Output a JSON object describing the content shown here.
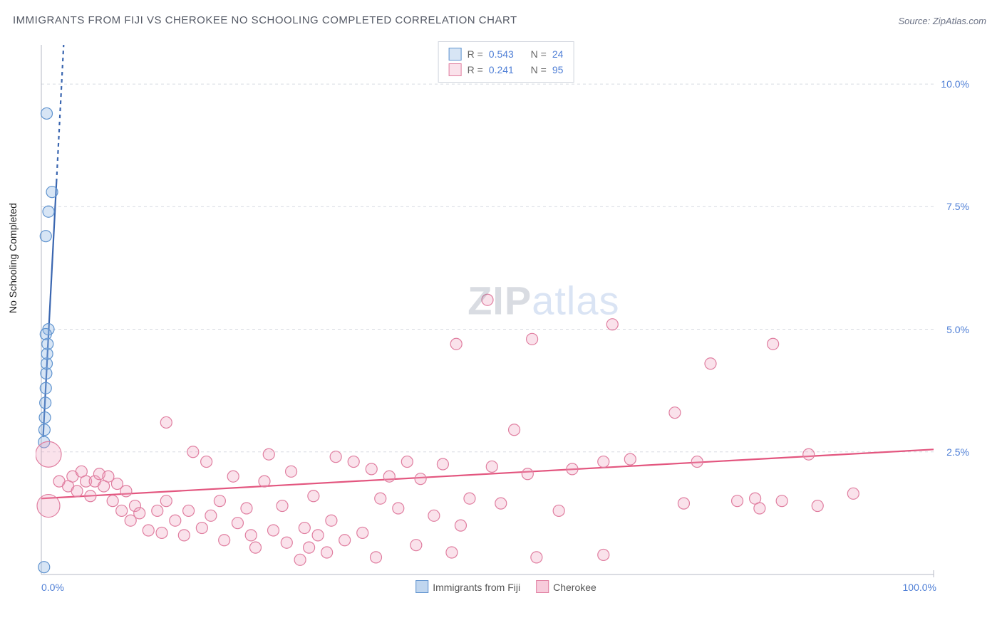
{
  "title": "IMMIGRANTS FROM FIJI VS CHEROKEE NO SCHOOLING COMPLETED CORRELATION CHART",
  "source_prefix": "Source: ",
  "source_name": "ZipAtlas.com",
  "ylabel": "No Schooling Completed",
  "watermark_bold": "ZIP",
  "watermark_light": "atlas",
  "chart": {
    "type": "scatter",
    "background_color": "#ffffff",
    "grid_color": "#d8dbe2",
    "grid_dash": "4,4",
    "axis_color": "#b6bac5",
    "xlim": [
      0,
      100
    ],
    "ylim": [
      0,
      10.8
    ],
    "x_ticks": [
      {
        "v": 0,
        "label": "0.0%"
      },
      {
        "v": 100,
        "label": "100.0%"
      }
    ],
    "y_ticks": [
      {
        "v": 2.5,
        "label": "2.5%"
      },
      {
        "v": 5.0,
        "label": "5.0%"
      },
      {
        "v": 7.5,
        "label": "7.5%"
      },
      {
        "v": 10.0,
        "label": "10.0%"
      }
    ],
    "tick_color": "#4f7fd6",
    "tick_fontsize": 14,
    "marker_radius": 8,
    "marker_stroke_width": 1.2,
    "trend_width": 2.2,
    "series": [
      {
        "id": "fiji",
        "name": "Immigrants from Fiji",
        "color": "#6fa2db",
        "fill": "rgba(140,180,225,0.35)",
        "stroke": "#5f93cf",
        "R": "0.543",
        "N": "24",
        "trend": {
          "x1": 0.2,
          "y1": 2.8,
          "x2": 2.5,
          "y2": 10.8,
          "color": "#3a66b0",
          "dash_after_y": 8.0
        },
        "points": [
          {
            "x": 0.3,
            "y": 0.15,
            "r": 8
          },
          {
            "x": 0.3,
            "y": 2.7
          },
          {
            "x": 0.35,
            "y": 2.95
          },
          {
            "x": 0.4,
            "y": 3.2
          },
          {
            "x": 0.45,
            "y": 3.5
          },
          {
            "x": 0.5,
            "y": 3.8
          },
          {
            "x": 0.55,
            "y": 4.1
          },
          {
            "x": 0.6,
            "y": 4.3
          },
          {
            "x": 0.65,
            "y": 4.5
          },
          {
            "x": 0.7,
            "y": 4.7
          },
          {
            "x": 0.8,
            "y": 5.0
          },
          {
            "x": 0.5,
            "y": 4.9
          },
          {
            "x": 0.5,
            "y": 6.9
          },
          {
            "x": 0.8,
            "y": 7.4
          },
          {
            "x": 1.2,
            "y": 7.8
          },
          {
            "x": 0.6,
            "y": 9.4
          }
        ]
      },
      {
        "id": "cherokee",
        "name": "Cherokee",
        "color": "#e28aa6",
        "fill": "rgba(240,160,190,0.30)",
        "stroke": "#e07ea0",
        "R": "0.241",
        "N": "95",
        "trend": {
          "x1": 0,
          "y1": 1.55,
          "x2": 100,
          "y2": 2.55,
          "color": "#e3567f"
        },
        "points": [
          {
            "x": 0.8,
            "y": 2.45,
            "r": 18
          },
          {
            "x": 0.8,
            "y": 1.4,
            "r": 16
          },
          {
            "x": 2,
            "y": 1.9
          },
          {
            "x": 3,
            "y": 1.8
          },
          {
            "x": 3.5,
            "y": 2.0
          },
          {
            "x": 4,
            "y": 1.7
          },
          {
            "x": 4.5,
            "y": 2.1
          },
          {
            "x": 5,
            "y": 1.9
          },
          {
            "x": 5.5,
            "y": 1.6
          },
          {
            "x": 6,
            "y": 1.9
          },
          {
            "x": 6.5,
            "y": 2.05
          },
          {
            "x": 7,
            "y": 1.8
          },
          {
            "x": 7.5,
            "y": 2.0
          },
          {
            "x": 8,
            "y": 1.5
          },
          {
            "x": 8.5,
            "y": 1.85
          },
          {
            "x": 9,
            "y": 1.3
          },
          {
            "x": 9.5,
            "y": 1.7
          },
          {
            "x": 10,
            "y": 1.1
          },
          {
            "x": 10.5,
            "y": 1.4
          },
          {
            "x": 11,
            "y": 1.25
          },
          {
            "x": 12,
            "y": 0.9
          },
          {
            "x": 13,
            "y": 1.3
          },
          {
            "x": 13.5,
            "y": 0.85
          },
          {
            "x": 14,
            "y": 1.5
          },
          {
            "x": 14,
            "y": 3.1
          },
          {
            "x": 15,
            "y": 1.1
          },
          {
            "x": 16,
            "y": 0.8
          },
          {
            "x": 16.5,
            "y": 1.3
          },
          {
            "x": 17,
            "y": 2.5
          },
          {
            "x": 18,
            "y": 0.95
          },
          {
            "x": 18.5,
            "y": 2.3
          },
          {
            "x": 19,
            "y": 1.2
          },
          {
            "x": 20,
            "y": 1.5
          },
          {
            "x": 20.5,
            "y": 0.7
          },
          {
            "x": 21.5,
            "y": 2.0
          },
          {
            "x": 22,
            "y": 1.05
          },
          {
            "x": 23,
            "y": 1.35
          },
          {
            "x": 23.5,
            "y": 0.8
          },
          {
            "x": 24,
            "y": 0.55
          },
          {
            "x": 25,
            "y": 1.9
          },
          {
            "x": 25.5,
            "y": 2.45
          },
          {
            "x": 26,
            "y": 0.9
          },
          {
            "x": 27,
            "y": 1.4
          },
          {
            "x": 27.5,
            "y": 0.65
          },
          {
            "x": 28,
            "y": 2.1
          },
          {
            "x": 29,
            "y": 0.3
          },
          {
            "x": 29.5,
            "y": 0.95
          },
          {
            "x": 30,
            "y": 0.55
          },
          {
            "x": 30.5,
            "y": 1.6
          },
          {
            "x": 31,
            "y": 0.8
          },
          {
            "x": 32,
            "y": 0.45
          },
          {
            "x": 32.5,
            "y": 1.1
          },
          {
            "x": 33,
            "y": 2.4
          },
          {
            "x": 34,
            "y": 0.7
          },
          {
            "x": 35,
            "y": 2.3
          },
          {
            "x": 36,
            "y": 0.85
          },
          {
            "x": 37,
            "y": 2.15
          },
          {
            "x": 37.5,
            "y": 0.35
          },
          {
            "x": 38,
            "y": 1.55
          },
          {
            "x": 39,
            "y": 2.0
          },
          {
            "x": 40,
            "y": 1.35
          },
          {
            "x": 41,
            "y": 2.3
          },
          {
            "x": 42,
            "y": 0.6
          },
          {
            "x": 42.5,
            "y": 1.95
          },
          {
            "x": 44,
            "y": 1.2
          },
          {
            "x": 45,
            "y": 2.25
          },
          {
            "x": 46,
            "y": 0.45
          },
          {
            "x": 46.5,
            "y": 4.7
          },
          {
            "x": 47,
            "y": 1.0
          },
          {
            "x": 48,
            "y": 1.55
          },
          {
            "x": 50,
            "y": 5.6
          },
          {
            "x": 50.5,
            "y": 2.2
          },
          {
            "x": 51.5,
            "y": 1.45
          },
          {
            "x": 53,
            "y": 2.95
          },
          {
            "x": 54.5,
            "y": 2.05
          },
          {
            "x": 55,
            "y": 4.8
          },
          {
            "x": 55.5,
            "y": 0.35
          },
          {
            "x": 58,
            "y": 1.3
          },
          {
            "x": 59.5,
            "y": 2.15
          },
          {
            "x": 63,
            "y": 2.3
          },
          {
            "x": 63,
            "y": 0.4
          },
          {
            "x": 64,
            "y": 5.1
          },
          {
            "x": 66,
            "y": 2.35
          },
          {
            "x": 71,
            "y": 3.3
          },
          {
            "x": 72,
            "y": 1.45
          },
          {
            "x": 73.5,
            "y": 2.3
          },
          {
            "x": 75,
            "y": 4.3
          },
          {
            "x": 78,
            "y": 1.5
          },
          {
            "x": 80,
            "y": 1.55
          },
          {
            "x": 80.5,
            "y": 1.35
          },
          {
            "x": 82,
            "y": 4.7
          },
          {
            "x": 83,
            "y": 1.5
          },
          {
            "x": 86,
            "y": 2.45
          },
          {
            "x": 87,
            "y": 1.4
          },
          {
            "x": 91,
            "y": 1.65
          }
        ]
      }
    ]
  },
  "legend_bottom": [
    {
      "label": "Immigrants from Fiji",
      "fill": "rgba(140,180,225,0.55)",
      "stroke": "#5f93cf"
    },
    {
      "label": "Cherokee",
      "fill": "rgba(240,160,190,0.55)",
      "stroke": "#e07ea0"
    }
  ]
}
